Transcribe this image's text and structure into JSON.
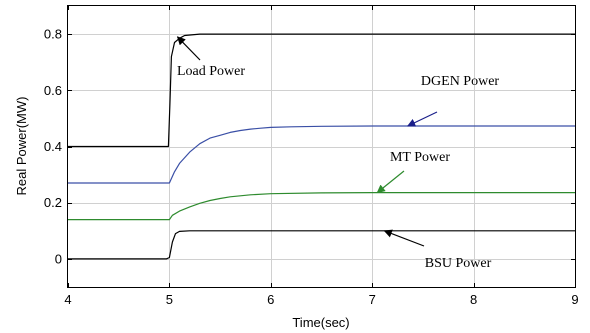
{
  "chart_data": {
    "type": "line",
    "xlabel": "Time(sec)",
    "ylabel": "Real Power(MW)",
    "xlim": [
      4,
      9
    ],
    "ylim": [
      -0.1,
      0.9
    ],
    "x_ticks": [
      4,
      5,
      6,
      7,
      8,
      9
    ],
    "y_ticks": [
      0,
      0.2,
      0.4,
      0.6,
      0.8
    ],
    "grid": true,
    "series": [
      {
        "name": "Load Power",
        "color": "#000000",
        "x": [
          4.0,
          4.95,
          4.99,
          5.005,
          5.02,
          5.05,
          5.1,
          5.15,
          5.3,
          5.5,
          5.8,
          6.0,
          7.0,
          8.0,
          9.0
        ],
        "y": [
          0.4,
          0.4,
          0.4,
          0.55,
          0.72,
          0.77,
          0.785,
          0.795,
          0.8,
          0.8,
          0.8,
          0.8,
          0.8,
          0.8,
          0.8
        ]
      },
      {
        "name": "DGEN Power",
        "color": "#3a4fa6",
        "x": [
          4.0,
          4.99,
          5.0,
          5.05,
          5.1,
          5.2,
          5.3,
          5.4,
          5.5,
          5.6,
          5.7,
          5.8,
          5.9,
          6.0,
          6.2,
          6.5,
          7.0,
          8.0,
          9.0
        ],
        "y": [
          0.27,
          0.27,
          0.27,
          0.31,
          0.34,
          0.38,
          0.41,
          0.43,
          0.44,
          0.45,
          0.457,
          0.462,
          0.465,
          0.468,
          0.47,
          0.472,
          0.473,
          0.473,
          0.473
        ]
      },
      {
        "name": "MT Power",
        "color": "#2e8b2e",
        "x": [
          4.0,
          4.99,
          5.0,
          5.03,
          5.1,
          5.2,
          5.3,
          5.4,
          5.5,
          5.6,
          5.8,
          6.0,
          6.5,
          7.0,
          8.0,
          9.0
        ],
        "y": [
          0.14,
          0.14,
          0.14,
          0.155,
          0.17,
          0.185,
          0.198,
          0.208,
          0.215,
          0.221,
          0.228,
          0.232,
          0.235,
          0.236,
          0.236,
          0.236
        ]
      },
      {
        "name": "BSU Power",
        "color": "#000000",
        "x": [
          4.0,
          4.97,
          5.0,
          5.03,
          5.06,
          5.1,
          5.2,
          6.0,
          7.0,
          8.0,
          9.0
        ],
        "y": [
          0.0,
          0.0,
          0.005,
          0.06,
          0.09,
          0.098,
          0.1,
          0.1,
          0.1,
          0.1,
          0.1
        ]
      }
    ],
    "annotations": [
      {
        "text": "Load Power",
        "series": "Load Power",
        "point": [
          5.08,
          0.79
        ]
      },
      {
        "text": "DGEN Power",
        "series": "DGEN Power",
        "point": [
          7.35,
          0.473
        ]
      },
      {
        "text": "MT Power",
        "series": "MT Power",
        "point": [
          7.05,
          0.236
        ]
      },
      {
        "text": "BSU Power",
        "series": "BSU Power",
        "point": [
          7.12,
          0.1
        ]
      }
    ]
  }
}
